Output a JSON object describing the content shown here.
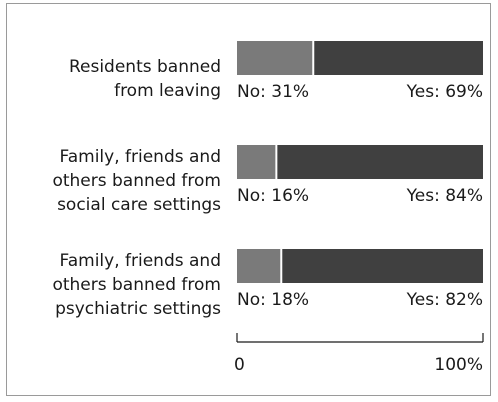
{
  "chart_data": {
    "type": "bar",
    "stacked": true,
    "orientation": "horizontal",
    "categories": [
      [
        "Residents banned",
        "from leaving"
      ],
      [
        "Family, friends and",
        "others banned from",
        "social care settings"
      ],
      [
        "Family, friends and",
        "others banned from",
        "psychiatric settings"
      ]
    ],
    "series": [
      {
        "name": "No",
        "values": [
          31,
          16,
          18
        ],
        "color": "#7a7a7a"
      },
      {
        "name": "Yes",
        "values": [
          69,
          84,
          82
        ],
        "color": "#404040"
      }
    ],
    "data_labels": [
      {
        "no": "No: 31%",
        "yes": "Yes: 69%"
      },
      {
        "no": "No: 16%",
        "yes": "Yes: 84%"
      },
      {
        "no": "No: 18%",
        "yes": "Yes: 82%"
      }
    ],
    "axis": {
      "min_label": "0",
      "max_label": "100%"
    },
    "xlim": [
      0,
      100
    ],
    "grid": false,
    "legend": "none"
  }
}
